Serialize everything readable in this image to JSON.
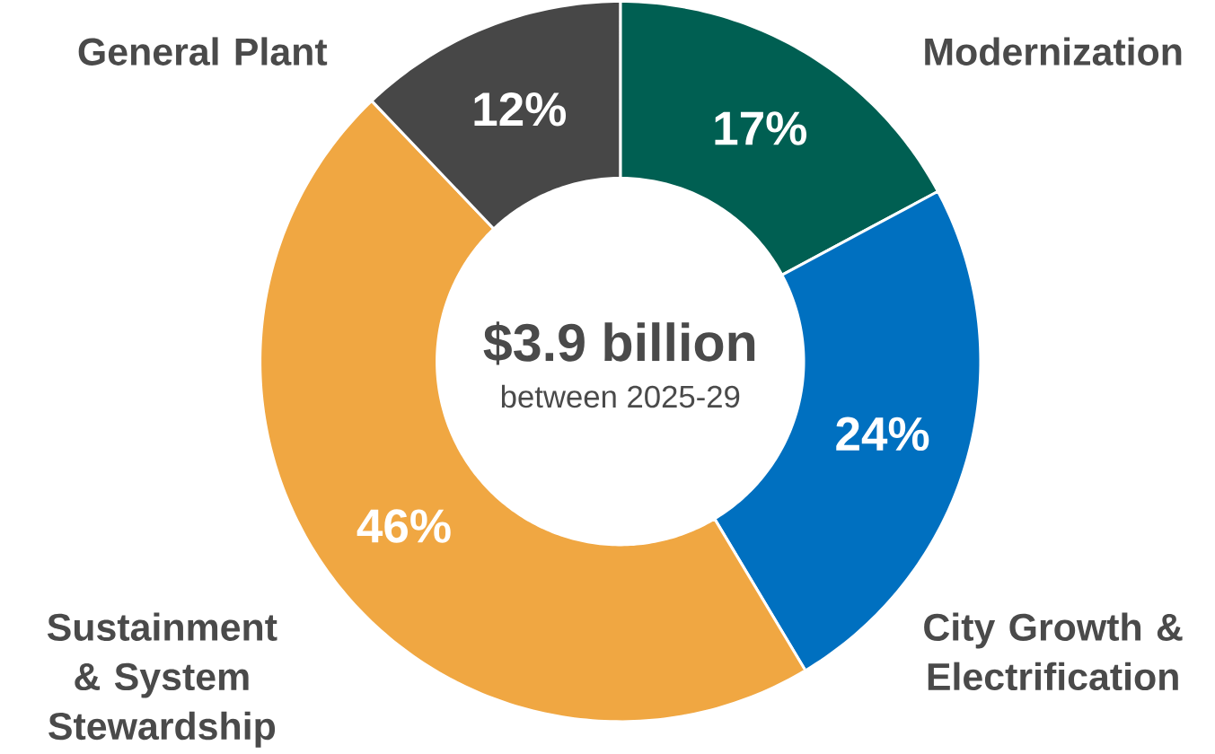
{
  "chart_data": {
    "type": "donut",
    "title": "$3.9 billion",
    "subtitle": "between 2025-29",
    "categories": [
      "Modernization",
      "City Growth & Electrification",
      "Sustainment & System Stewardship",
      "General Plant"
    ],
    "values": [
      17,
      24,
      46,
      12
    ],
    "colors": [
      "#005f52",
      "#0070c0",
      "#f0a742",
      "#474747"
    ],
    "value_labels": [
      "17%",
      "24%",
      "46%",
      "12%"
    ]
  }
}
